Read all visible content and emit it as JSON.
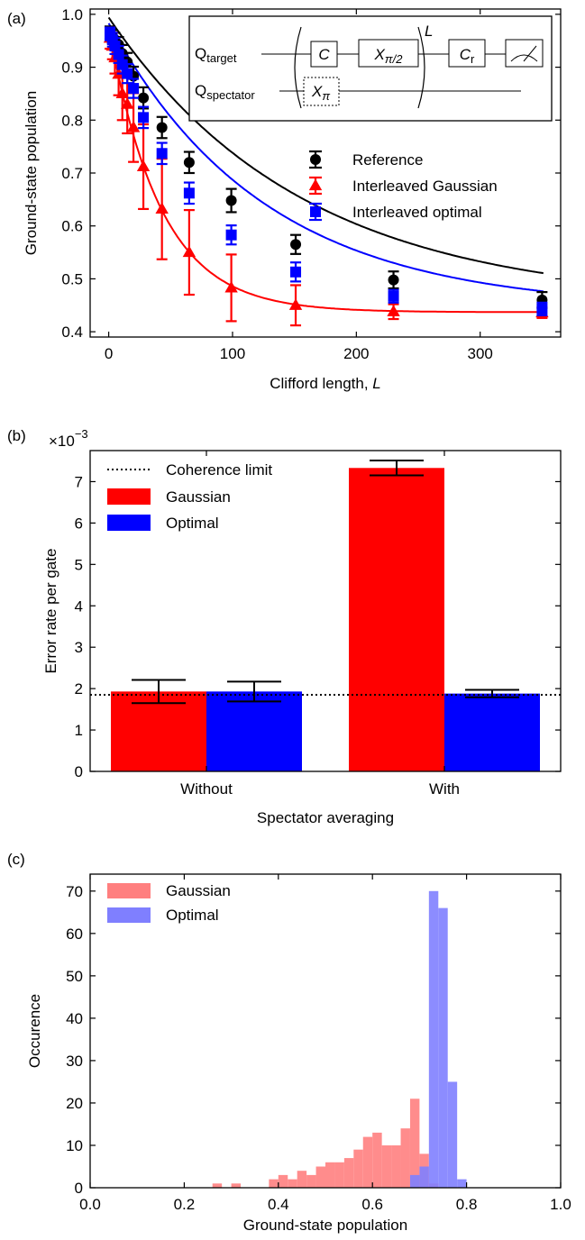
{
  "panels": [
    {
      "letter": "(a)",
      "chart_data": {
        "type": "scatter",
        "xlabel_text": "Clifford length, ",
        "xlabel_var": "L",
        "ylabel": "Ground-state population",
        "xlim": [
          -15,
          365
        ],
        "ylim": [
          0.39,
          1.01
        ],
        "xticks": [
          0,
          100,
          200,
          300
        ],
        "yticks": [
          0.4,
          0.5,
          0.6,
          0.7,
          0.8,
          0.9,
          1.0
        ],
        "ytick_labels": [
          "0.4",
          "0.5",
          "0.6",
          "0.7",
          "0.8",
          "0.9",
          "1.0"
        ],
        "legend_position": "right, below inset",
        "series": [
          {
            "name": "Reference",
            "color": "#000000",
            "marker": "circle",
            "x": [
              1,
              3,
              5,
              8,
              11,
              15,
              20,
              28,
              43,
              65,
              99,
              151,
              230,
              350
            ],
            "y": [
              0.965,
              0.958,
              0.952,
              0.943,
              0.926,
              0.91,
              0.883,
              0.842,
              0.786,
              0.72,
              0.648,
              0.565,
              0.498,
              0.46
            ],
            "err": [
              0.012,
              0.012,
              0.013,
              0.014,
              0.016,
              0.017,
              0.018,
              0.02,
              0.02,
              0.02,
              0.022,
              0.018,
              0.016,
              0.015
            ],
            "fit": {
              "a": 0.54,
              "p": 0.9936,
              "b": 0.454
            }
          },
          {
            "name": "Interleaved Gaussian",
            "color": "#ff0000",
            "marker": "triangle",
            "x": [
              1,
              3,
              5,
              8,
              11,
              15,
              20,
              28,
              43,
              65,
              99,
              151,
              230,
              350
            ],
            "y": [
              0.955,
              0.94,
              0.918,
              0.887,
              0.85,
              0.83,
              0.786,
              0.712,
              0.632,
              0.55,
              0.483,
              0.45,
              0.438,
              0.436
            ],
            "err": [
              0.02,
              0.025,
              0.03,
              0.04,
              0.05,
              0.055,
              0.065,
              0.08,
              0.095,
              0.08,
              0.063,
              0.038,
              0.014,
              0.01
            ],
            "fit": {
              "a": 0.54,
              "p": 0.9763,
              "b": 0.437
            }
          },
          {
            "name": "Interleaved optimal",
            "color": "#0000ff",
            "marker": "square",
            "x": [
              1,
              3,
              5,
              8,
              11,
              15,
              20,
              28,
              43,
              65,
              99,
              151,
              230,
              350
            ],
            "y": [
              0.963,
              0.952,
              0.94,
              0.924,
              0.905,
              0.888,
              0.86,
              0.805,
              0.737,
              0.662,
              0.583,
              0.513,
              0.467,
              0.443
            ],
            "err": [
              0.012,
              0.013,
              0.015,
              0.016,
              0.017,
              0.018,
              0.018,
              0.02,
              0.02,
              0.02,
              0.018,
              0.018,
              0.012,
              0.012
            ],
            "fit": {
              "a": 0.54,
              "p": 0.9921,
              "b": 0.443
            }
          }
        ]
      },
      "inset": {
        "target_main": "Q",
        "target_sub": "target",
        "spectator_main": "Q",
        "spectator_sub": "spectator",
        "gate_c": "C",
        "gate_xhalf_main": "X",
        "gate_xhalf_sub": "π/2",
        "gate_cr_main": "C",
        "gate_cr_sub": "r",
        "gate_xpi_main": "X",
        "gate_xpi_sub": "π",
        "repeat": "L"
      }
    },
    {
      "letter": "(b)",
      "chart_data": {
        "type": "bar",
        "categories": [
          "Without",
          "With"
        ],
        "xlabel": "Spectator averaging",
        "ylabel": "Error rate per gate",
        "scale_base": "×10",
        "scale_exp": "−3",
        "ylim": [
          0,
          7.75
        ],
        "yticks": [
          0,
          1,
          2,
          3,
          4,
          5,
          6,
          7
        ],
        "coherence_limit": 1.85,
        "coherence_label": "Coherence limit",
        "legend_position": "top-left",
        "series": [
          {
            "name": "Gaussian",
            "color": "#ff0000",
            "values": [
              1.93,
              7.33
            ],
            "err": [
              0.28,
              0.18
            ]
          },
          {
            "name": "Optimal",
            "color": "#0000ff",
            "values": [
              1.93,
              1.88
            ],
            "err": [
              0.24,
              0.09
            ]
          }
        ]
      }
    },
    {
      "letter": "(c)",
      "chart_data": {
        "type": "bar",
        "subtype": "histogram",
        "xlabel": "Ground-state population",
        "ylabel": "Occurence",
        "xlim": [
          0,
          1
        ],
        "ylim": [
          0,
          74
        ],
        "xticks": [
          0.0,
          0.2,
          0.4,
          0.6,
          0.8,
          1.0
        ],
        "xtick_labels": [
          "0.0",
          "0.2",
          "0.4",
          "0.6",
          "0.8",
          "1.0"
        ],
        "yticks": [
          0,
          10,
          20,
          30,
          40,
          50,
          60,
          70
        ],
        "bin_width": 0.02,
        "legend_position": "top-left",
        "series": [
          {
            "name": "Gaussian",
            "color": "#ff7f7f",
            "bins_left": [
              0.26,
              0.3,
              0.38,
              0.4,
              0.42,
              0.44,
              0.46,
              0.48,
              0.5,
              0.52,
              0.54,
              0.56,
              0.58,
              0.6,
              0.62,
              0.64,
              0.66,
              0.68,
              0.7,
              0.72
            ],
            "counts": [
              1,
              1,
              2,
              3,
              2,
              4,
              3,
              5,
              6,
              6,
              7,
              9,
              12,
              13,
              10,
              10,
              14,
              21,
              8,
              1
            ]
          },
          {
            "name": "Optimal",
            "color": "#7f7fff",
            "bins_left": [
              0.68,
              0.7,
              0.72,
              0.74,
              0.76,
              0.78
            ],
            "counts": [
              3,
              5,
              70,
              66,
              25,
              2
            ]
          }
        ]
      }
    }
  ]
}
